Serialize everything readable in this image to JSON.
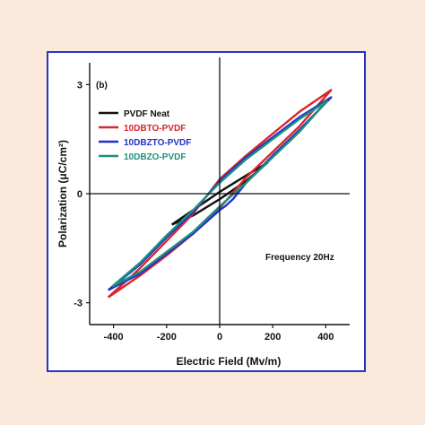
{
  "colors": {
    "page_background": "#fbe9dc",
    "card_border": "#2334c9",
    "axis": "#111111"
  },
  "chart_data": {
    "type": "line",
    "panel_label": "(b)",
    "xlabel": "Electric Field (Mv/m)",
    "ylabel": "Polarization (μC/cm²)",
    "xlim": [
      -490,
      490
    ],
    "ylim": [
      -3.6,
      3.6
    ],
    "x_ticks": [
      -400,
      -200,
      0,
      200,
      400
    ],
    "x_tick_labels": [
      "-400",
      "-200",
      "0",
      "200",
      "400"
    ],
    "y_ticks": [
      -3,
      0,
      3
    ],
    "y_tick_labels": [
      "-3",
      "0",
      "3"
    ],
    "grid": false,
    "crosshair_at_origin": true,
    "legend_position": "top-left",
    "annotation": "Frequency 20Hz",
    "series": [
      {
        "name": "PVDF Neat",
        "color": "#111111",
        "points": [
          [
            -180,
            -0.85
          ],
          [
            -100,
            -0.45
          ],
          [
            0,
            0.05
          ],
          [
            100,
            0.5
          ],
          [
            180,
            0.85
          ],
          [
            100,
            0.35
          ],
          [
            0,
            -0.15
          ],
          [
            -100,
            -0.6
          ],
          [
            -180,
            -0.85
          ]
        ]
      },
      {
        "name": "10DBTO-PVDF",
        "color": "#d8262b",
        "points": [
          [
            -420,
            -2.85
          ],
          [
            -300,
            -2.05
          ],
          [
            -200,
            -1.3
          ],
          [
            -100,
            -0.55
          ],
          [
            0,
            0.4
          ],
          [
            100,
            1.05
          ],
          [
            200,
            1.65
          ],
          [
            300,
            2.25
          ],
          [
            420,
            2.85
          ],
          [
            300,
            1.85
          ],
          [
            200,
            1.15
          ],
          [
            100,
            0.45
          ],
          [
            0,
            -0.4
          ],
          [
            -100,
            -1.1
          ],
          [
            -200,
            -1.7
          ],
          [
            -300,
            -2.25
          ],
          [
            -420,
            -2.85
          ]
        ]
      },
      {
        "name": "10DBZTO-PVDF",
        "color": "#2230cc",
        "points": [
          [
            -420,
            -2.65
          ],
          [
            -300,
            -1.95
          ],
          [
            -200,
            -1.2
          ],
          [
            -100,
            -0.5
          ],
          [
            0,
            0.35
          ],
          [
            100,
            1.0
          ],
          [
            200,
            1.55
          ],
          [
            300,
            2.1
          ],
          [
            420,
            2.65
          ],
          [
            300,
            1.75
          ],
          [
            200,
            1.05
          ],
          [
            100,
            0.3
          ],
          [
            50,
            -0.15
          ],
          [
            20,
            -0.35
          ],
          [
            0,
            -0.45
          ],
          [
            -100,
            -1.1
          ],
          [
            -200,
            -1.65
          ],
          [
            -300,
            -2.2
          ],
          [
            -420,
            -2.65
          ]
        ]
      },
      {
        "name": "10DBZO-PVDF",
        "color": "#1f8f7e",
        "points": [
          [
            -405,
            -2.55
          ],
          [
            -300,
            -1.9
          ],
          [
            -200,
            -1.15
          ],
          [
            -100,
            -0.45
          ],
          [
            0,
            0.3
          ],
          [
            100,
            0.95
          ],
          [
            200,
            1.5
          ],
          [
            300,
            2.05
          ],
          [
            405,
            2.55
          ],
          [
            300,
            1.7
          ],
          [
            200,
            1.0
          ],
          [
            100,
            0.3
          ],
          [
            0,
            -0.35
          ],
          [
            -100,
            -1.05
          ],
          [
            -200,
            -1.6
          ],
          [
            -300,
            -2.15
          ],
          [
            -405,
            -2.55
          ]
        ]
      }
    ]
  }
}
